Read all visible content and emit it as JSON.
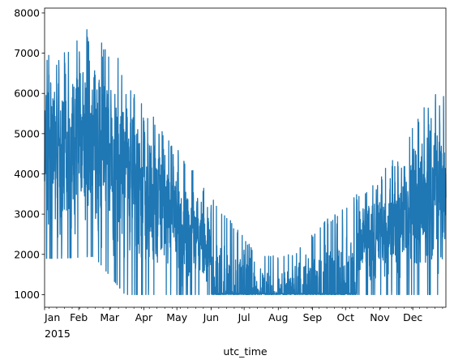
{
  "chart_data": {
    "type": "line",
    "title": "",
    "xlabel": "utc_time",
    "ylabel": "",
    "x_start": "2015-01-01",
    "x_end": "2015-12-31",
    "ylim": [
      686,
      8120
    ],
    "y_ticks": [
      1000,
      2000,
      3000,
      4000,
      5000,
      6000,
      7000,
      8000
    ],
    "x_tick_labels": [
      "Jan",
      "Feb",
      "Mar",
      "Apr",
      "May",
      "Jun",
      "Jul",
      "Aug",
      "Sep",
      "Oct",
      "Nov",
      "Dec"
    ],
    "x_year_label": "2015",
    "grid": false,
    "legend": "none",
    "series": [
      {
        "color": "#1f77b4",
        "monthly_envelope": [
          {
            "month": "2015-01",
            "min": 1900,
            "max": 7050
          },
          {
            "month": "2015-02",
            "min": 1950,
            "max": 7750
          },
          {
            "month": "2015-03",
            "min": 1000,
            "max": 6650
          },
          {
            "month": "2015-04",
            "min": 1000,
            "max": 5250
          },
          {
            "month": "2015-05",
            "min": 1000,
            "max": 4100
          },
          {
            "month": "2015-06",
            "min": 1000,
            "max": 3000
          },
          {
            "month": "2015-07",
            "min": 1000,
            "max": 1950
          },
          {
            "month": "2015-08",
            "min": 1000,
            "max": 2000
          },
          {
            "month": "2015-09",
            "min": 1000,
            "max": 2900
          },
          {
            "month": "2015-10",
            "min": 1000,
            "max": 3600
          },
          {
            "month": "2015-11",
            "min": 1000,
            "max": 4400
          },
          {
            "month": "2015-12",
            "min": 1000,
            "max": 6000
          }
        ]
      }
    ]
  }
}
